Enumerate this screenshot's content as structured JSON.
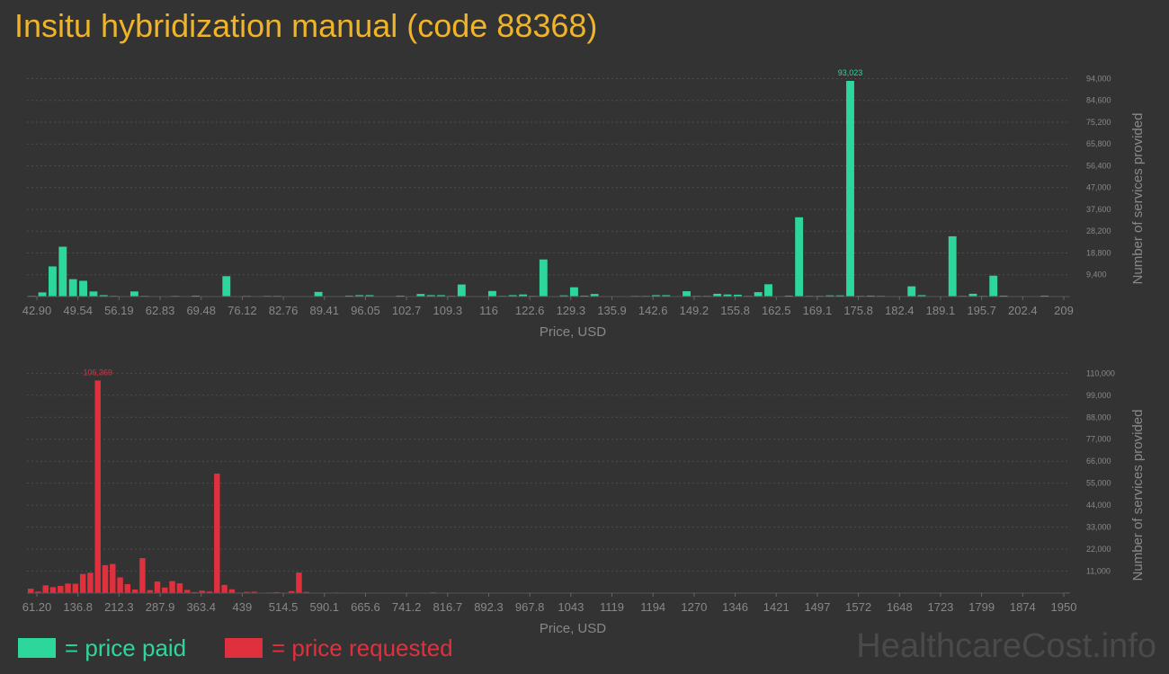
{
  "title": "Insitu hybridization manual (code 88368)",
  "colors": {
    "paid": "#2dd69a",
    "requested": "#e0303e",
    "title": "#f0b429",
    "axis": "#888888"
  },
  "legend": {
    "paid": "= price paid",
    "requested": "= price requested"
  },
  "watermark": "HealthcareCost.info",
  "chart_data": [
    {
      "type": "bar",
      "series_color": "paid",
      "xlabel": "Price, USD",
      "ylabel": "Number of services provided",
      "ylim": [
        0,
        100000
      ],
      "y_ticks": [
        "9,400",
        "18,800",
        "28,200",
        "37,600",
        "47,000",
        "56,400",
        "65,800",
        "75,200",
        "84,600",
        "94,000"
      ],
      "y_tick_values": [
        9400,
        18800,
        28200,
        37600,
        47000,
        56400,
        65800,
        75200,
        84600,
        94000
      ],
      "x_ticks": [
        "42.90",
        "49.54",
        "56.19",
        "62.83",
        "69.48",
        "76.12",
        "82.76",
        "89.41",
        "96.05",
        "102.7",
        "109.3",
        "116",
        "122.6",
        "129.3",
        "135.9",
        "142.6",
        "149.2",
        "155.8",
        "162.5",
        "169.1",
        "175.8",
        "182.4",
        "189.1",
        "195.7",
        "202.4",
        "209"
      ],
      "peak_label": "93,023",
      "peak_index": 80,
      "values": [
        300,
        1800,
        13000,
        21500,
        7500,
        6800,
        2200,
        600,
        300,
        200,
        2200,
        300,
        0,
        0,
        300,
        0,
        400,
        0,
        0,
        8800,
        0,
        300,
        200,
        300,
        300,
        200,
        200,
        0,
        2000,
        0,
        0,
        400,
        600,
        600,
        0,
        0,
        400,
        0,
        1100,
        600,
        600,
        300,
        5200,
        0,
        0,
        2400,
        300,
        600,
        900,
        300,
        16000,
        0,
        500,
        4000,
        400,
        1100,
        0,
        200,
        0,
        300,
        300,
        600,
        600,
        200,
        2300,
        300,
        300,
        1200,
        900,
        800,
        300,
        1900,
        5300,
        200,
        400,
        34200,
        300,
        300,
        500,
        500,
        93023,
        300,
        400,
        300,
        0,
        0,
        4400,
        600,
        0,
        0,
        26000,
        300,
        1200,
        300,
        9000,
        400,
        0,
        0,
        0,
        400,
        0,
        0
      ]
    },
    {
      "type": "bar",
      "series_color": "requested",
      "xlabel": "Price, USD",
      "ylabel": "Number of services provided",
      "ylim": [
        0,
        116000
      ],
      "y_ticks": [
        "11,000",
        "22,000",
        "33,000",
        "44,000",
        "55,000",
        "66,000",
        "77,000",
        "88,000",
        "99,000",
        "110,000"
      ],
      "y_tick_values": [
        11000,
        22000,
        33000,
        44000,
        55000,
        66000,
        77000,
        88000,
        99000,
        110000
      ],
      "x_ticks": [
        "61.20",
        "136.8",
        "212.3",
        "287.9",
        "363.4",
        "439",
        "514.5",
        "590.1",
        "665.6",
        "741.2",
        "816.7",
        "892.3",
        "967.8",
        "1043",
        "1119",
        "1194",
        "1270",
        "1346",
        "1421",
        "1497",
        "1572",
        "1648",
        "1723",
        "1799",
        "1874",
        "1950"
      ],
      "peak_label": "106,369",
      "peak_index": 9,
      "values": [
        2200,
        800,
        3900,
        3000,
        3600,
        4800,
        4700,
        9600,
        10200,
        106369,
        14000,
        14600,
        7900,
        4500,
        1800,
        17500,
        1500,
        5800,
        2800,
        6000,
        4900,
        1600,
        500,
        1200,
        800,
        59800,
        4100,
        1900,
        300,
        600,
        700,
        200,
        300,
        500,
        200,
        1000,
        10300,
        600,
        0,
        0,
        0,
        300,
        0,
        0,
        0,
        0,
        0,
        0,
        0,
        0,
        0,
        0,
        0,
        0,
        400,
        0,
        0,
        0,
        0,
        0,
        0,
        0,
        0,
        0,
        0,
        0,
        0,
        0,
        0,
        0,
        0,
        0,
        0,
        0,
        0,
        0,
        0,
        0,
        0,
        0,
        0,
        0,
        0,
        0,
        0,
        0,
        0,
        0,
        0,
        0,
        0,
        0,
        0,
        0,
        0,
        0,
        0,
        0,
        0,
        0,
        0,
        0,
        0,
        0,
        0,
        0,
        0,
        0,
        0,
        0,
        0,
        0,
        0,
        0,
        0,
        0,
        0,
        0,
        0,
        0,
        0,
        0,
        0,
        0,
        0,
        0,
        0,
        0,
        0,
        0,
        0,
        0,
        0,
        0,
        0,
        0,
        0,
        0,
        0,
        300
      ]
    }
  ]
}
